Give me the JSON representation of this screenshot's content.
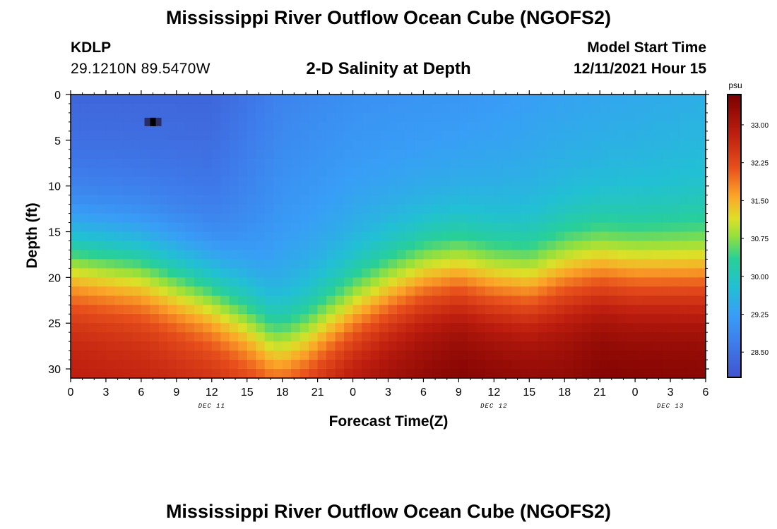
{
  "header": {
    "title": "Mississippi River Outflow Ocean Cube (NGOFS2)",
    "station_id": "KDLP",
    "station_coords": "29.1210N  89.5470W",
    "subtitle": "2-D Salinity at Depth",
    "model_start_label": "Model Start Time",
    "model_start_value": "12/11/2021 Hour 15"
  },
  "footer": {
    "title": "Mississippi River Outflow Ocean Cube (NGOFS2)"
  },
  "chart_data": {
    "type": "heatmap",
    "xlabel": "Forecast Time(Z)",
    "ylabel": "Depth (ft)",
    "x_tick_labels": [
      "0",
      "3",
      "6",
      "9",
      "12",
      "15",
      "18",
      "21",
      "0",
      "3",
      "6",
      "9",
      "12",
      "15",
      "18",
      "21",
      "0",
      "3",
      "6"
    ],
    "x_range_hours": [
      0,
      54
    ],
    "date_labels": [
      {
        "label": "DEC 11",
        "hour": 12
      },
      {
        "label": "DEC 12",
        "hour": 36
      },
      {
        "label": "DEC 13",
        "hour": 51
      }
    ],
    "y_ticks": [
      0,
      5,
      10,
      15,
      20,
      25,
      30
    ],
    "ylim": [
      0,
      31
    ],
    "colorbar": {
      "unit": "psu",
      "range": [
        28.0,
        33.6
      ],
      "ticks": [
        "33.00",
        "32.25",
        "31.50",
        "30.75",
        "30.00",
        "29.25",
        "28.50"
      ]
    },
    "halocline_depth_ft": [
      {
        "hour": 0,
        "depth": 14.5
      },
      {
        "hour": 6,
        "depth": 15.5
      },
      {
        "hour": 12,
        "depth": 18.5
      },
      {
        "hour": 15,
        "depth": 21.0
      },
      {
        "hour": 17,
        "depth": 23.5
      },
      {
        "hour": 18,
        "depth": 24.0
      },
      {
        "hour": 20,
        "depth": 23.0
      },
      {
        "hour": 24,
        "depth": 19.5
      },
      {
        "hour": 27,
        "depth": 17.5
      },
      {
        "hour": 30,
        "depth": 16.0
      },
      {
        "hour": 33,
        "depth": 15.5
      },
      {
        "hour": 36,
        "depth": 16.5
      },
      {
        "hour": 39,
        "depth": 17.0
      },
      {
        "hour": 42,
        "depth": 15.5
      },
      {
        "hour": 45,
        "depth": 15.0
      },
      {
        "hour": 48,
        "depth": 15.5
      },
      {
        "hour": 51,
        "depth": 15.5
      },
      {
        "hour": 54,
        "depth": 15.5
      }
    ],
    "surface_salinity_psu": [
      {
        "hour": 0,
        "value": 28.3
      },
      {
        "hour": 12,
        "value": 28.3
      },
      {
        "hour": 18,
        "value": 28.8
      },
      {
        "hour": 24,
        "value": 29.0
      },
      {
        "hour": 33,
        "value": 29.1
      },
      {
        "hour": 42,
        "value": 29.3
      },
      {
        "hour": 54,
        "value": 29.5
      }
    ],
    "bottom_salinity_psu": [
      {
        "hour": 0,
        "value": 32.9
      },
      {
        "hour": 15,
        "value": 32.7
      },
      {
        "hour": 18,
        "value": 32.9
      },
      {
        "hour": 27,
        "value": 33.3
      },
      {
        "hour": 33,
        "value": 33.55
      },
      {
        "hour": 42,
        "value": 33.4
      },
      {
        "hour": 45,
        "value": 33.55
      },
      {
        "hour": 54,
        "value": 33.5
      }
    ],
    "marker": {
      "hour": 7,
      "depth": 3
    }
  }
}
